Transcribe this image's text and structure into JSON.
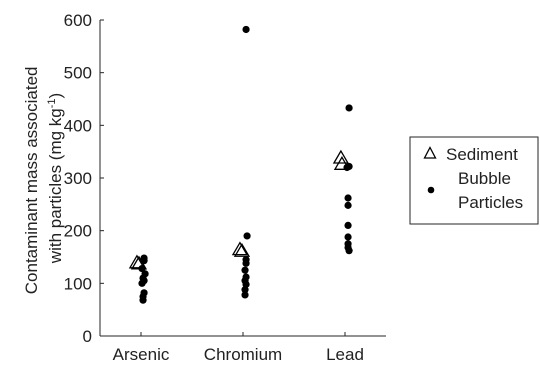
{
  "chart_data": {
    "type": "scatter",
    "categories": [
      "Arsenic",
      "Chromium",
      "Lead"
    ],
    "ylabel_line1": "Contaminant mass associated",
    "ylabel_line2_prefix": "with particles (mg kg",
    "ylabel_line2_sup": "-1",
    "ylabel_line2_suffix": ")",
    "ylim": [
      0,
      600
    ],
    "yticks": [
      "0",
      "100",
      "200",
      "300",
      "400",
      "500",
      "600"
    ],
    "legend_position": "right",
    "series": [
      {
        "name": "Sediment",
        "marker": "triangle",
        "points": [
          {
            "category": "Arsenic",
            "x_offset": -0.04,
            "y": 138
          },
          {
            "category": "Arsenic",
            "x_offset": -0.02,
            "y": 136
          },
          {
            "category": "Chromium",
            "x_offset": -0.03,
            "y": 163
          },
          {
            "category": "Chromium",
            "x_offset": -0.01,
            "y": 160
          },
          {
            "category": "Lead",
            "x_offset": -0.04,
            "y": 337
          },
          {
            "category": "Lead",
            "x_offset": -0.03,
            "y": 325
          }
        ]
      },
      {
        "name": "Bubble Particles",
        "legend_lines": [
          "Bubble",
          "Particles"
        ],
        "marker": "dot",
        "points": [
          {
            "category": "Arsenic",
            "x_offset": 0.03,
            "y": 148
          },
          {
            "category": "Arsenic",
            "x_offset": 0.03,
            "y": 143
          },
          {
            "category": "Arsenic",
            "x_offset": 0.01,
            "y": 128
          },
          {
            "category": "Arsenic",
            "x_offset": 0.04,
            "y": 118
          },
          {
            "category": "Arsenic",
            "x_offset": 0.02,
            "y": 110
          },
          {
            "category": "Arsenic",
            "x_offset": 0.03,
            "y": 105
          },
          {
            "category": "Arsenic",
            "x_offset": 0.01,
            "y": 100
          },
          {
            "category": "Arsenic",
            "x_offset": 0.03,
            "y": 82
          },
          {
            "category": "Arsenic",
            "x_offset": 0.02,
            "y": 75
          },
          {
            "category": "Arsenic",
            "x_offset": 0.02,
            "y": 68
          },
          {
            "category": "Chromium",
            "x_offset": 0.03,
            "y": 582
          },
          {
            "category": "Chromium",
            "x_offset": 0.04,
            "y": 190
          },
          {
            "category": "Chromium",
            "x_offset": 0.03,
            "y": 145
          },
          {
            "category": "Chromium",
            "x_offset": 0.03,
            "y": 138
          },
          {
            "category": "Chromium",
            "x_offset": 0.02,
            "y": 125
          },
          {
            "category": "Chromium",
            "x_offset": 0.03,
            "y": 112
          },
          {
            "category": "Chromium",
            "x_offset": 0.02,
            "y": 105
          },
          {
            "category": "Chromium",
            "x_offset": 0.03,
            "y": 98
          },
          {
            "category": "Chromium",
            "x_offset": 0.02,
            "y": 88
          },
          {
            "category": "Chromium",
            "x_offset": 0.02,
            "y": 78
          },
          {
            "category": "Lead",
            "x_offset": 0.04,
            "y": 433
          },
          {
            "category": "Lead",
            "x_offset": 0.04,
            "y": 322
          },
          {
            "category": "Lead",
            "x_offset": 0.02,
            "y": 320
          },
          {
            "category": "Lead",
            "x_offset": 0.03,
            "y": 262
          },
          {
            "category": "Lead",
            "x_offset": 0.03,
            "y": 248
          },
          {
            "category": "Lead",
            "x_offset": 0.03,
            "y": 210
          },
          {
            "category": "Lead",
            "x_offset": 0.03,
            "y": 188
          },
          {
            "category": "Lead",
            "x_offset": 0.03,
            "y": 175
          },
          {
            "category": "Lead",
            "x_offset": 0.03,
            "y": 168
          },
          {
            "category": "Lead",
            "x_offset": 0.04,
            "y": 162
          }
        ]
      }
    ]
  }
}
